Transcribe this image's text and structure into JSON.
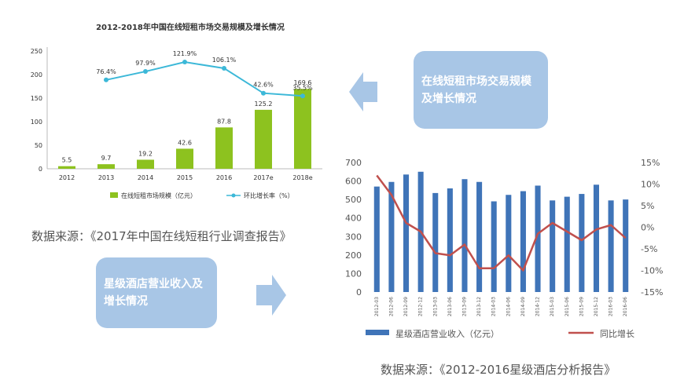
{
  "chart_data": [
    {
      "type": "bar+line",
      "title": "2012-2018年中国在线短租市场交易规模及增长情况",
      "categories": [
        "2012",
        "2013",
        "2014",
        "2015",
        "2016",
        "2017e",
        "2018e"
      ],
      "series": [
        {
          "name": "在线短租市场规模（亿元）",
          "kind": "bar",
          "axis": "left",
          "color": "#8dc21f",
          "values": [
            5.5,
            9.7,
            19.2,
            42.6,
            87.8,
            125.2,
            169.6
          ]
        },
        {
          "name": "环比增长率（%）",
          "kind": "line",
          "axis": "right",
          "color": "#3cb8d8",
          "values": [
            null,
            76.4,
            97.9,
            121.9,
            106.1,
            42.6,
            35.5
          ]
        }
      ],
      "bar_labels": [
        "5.5",
        "9.7",
        "19.2",
        "42.6",
        "87.8",
        "125.2",
        "169.6"
      ],
      "line_labels": [
        "",
        "76.4%",
        "97.9%",
        "121.9%",
        "106.1%",
        "42.6%",
        "35.5%"
      ],
      "y_left": {
        "min": 0,
        "max": 250,
        "ticks": [
          "0",
          "50",
          "100",
          "150",
          "200",
          "250"
        ]
      },
      "y_right_hidden_range": [
        -150,
        150
      ],
      "legend_position": "bottom",
      "grid": false
    },
    {
      "type": "bar+line",
      "title": "",
      "categories": [
        "2012-03",
        "2012-06",
        "2012-09",
        "2012-12",
        "2013-03",
        "2013-06",
        "2013-09",
        "2013-12",
        "2014-03",
        "2014-06",
        "2014-09",
        "2014-12",
        "2015-03",
        "2015-06",
        "2015-09",
        "2015-12",
        "2016-03",
        "2016-06"
      ],
      "series": [
        {
          "name": "星级酒店营业收入（亿元）",
          "kind": "bar",
          "axis": "left",
          "color": "#3f74b8",
          "values": [
            570,
            595,
            635,
            650,
            535,
            560,
            610,
            595,
            490,
            525,
            545,
            575,
            495,
            515,
            530,
            580,
            495,
            500
          ]
        },
        {
          "name": "同比增长",
          "kind": "line",
          "axis": "right",
          "color": "#c0504d",
          "values": [
            12,
            7.5,
            1,
            -1,
            -6,
            -6.5,
            -4,
            -9.5,
            -9.5,
            -6.5,
            -10,
            -1.5,
            1,
            -1,
            -3,
            -0.5,
            0.5,
            -2.5
          ]
        }
      ],
      "y_left": {
        "min": 0,
        "max": 700,
        "ticks": [
          "0",
          "100",
          "200",
          "300",
          "400",
          "500",
          "600",
          "700"
        ]
      },
      "y_right": {
        "min": -15,
        "max": 15,
        "ticks": [
          "-15%",
          "-10%",
          "-5%",
          "0%",
          "5%",
          "10%",
          "15%"
        ]
      },
      "legend_position": "bottom",
      "grid": false
    }
  ],
  "notes": {
    "source_top": "数据来源：《2017年中国在线短租行业调查报告》",
    "source_bottom": "数据来源：《2012-2016星级酒店分析报告》"
  },
  "callouts": {
    "top": "在线短租市场交易规模及增长情况",
    "bottom": "星级酒店营业收入及增长情况"
  },
  "colors": {
    "callout_bg": "#a8c6e6",
    "arrow": "#a8c6e6"
  },
  "icons": {
    "arrow_left": "arrow-left-icon",
    "arrow_right": "arrow-right-icon"
  }
}
